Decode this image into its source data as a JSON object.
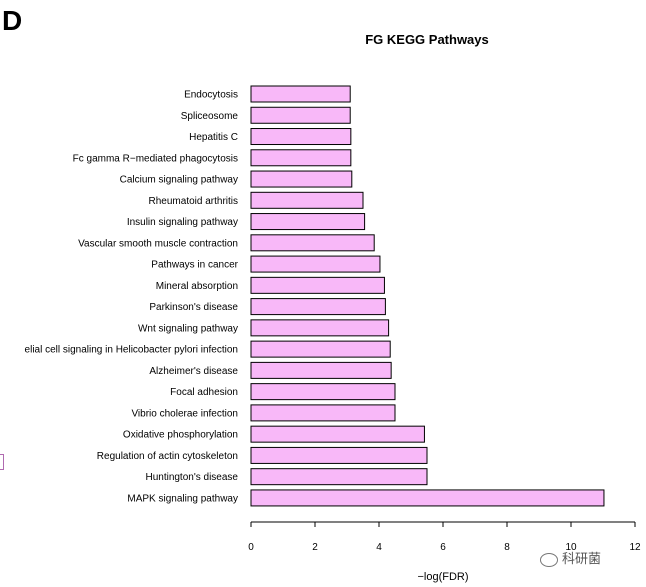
{
  "panel_label": "D",
  "colors": {
    "bar_fill": "#f8b8f8",
    "bar_stroke": "#000000",
    "edge_mark": "#b06ab0"
  },
  "watermark": {
    "text": "科研菌",
    "icon": "wechat-icon"
  },
  "chart_data": {
    "type": "bar",
    "orientation": "horizontal",
    "title": "FG  KEGG Pathways",
    "xlabel": "−log(FDR)",
    "ylabel": "",
    "xlim": [
      0,
      12
    ],
    "xticks": [
      0,
      2,
      4,
      6,
      8,
      10,
      12
    ],
    "grid": false,
    "categories": [
      "Endocytosis",
      "Spliceosome",
      "Hepatitis C",
      "Fc gamma R−mediated phagocytosis",
      "Calcium signaling pathway",
      "Rheumatoid arthritis",
      "Insulin signaling pathway",
      "Vascular smooth muscle contraction",
      "Pathways in cancer",
      "Mineral absorption",
      "Parkinson's disease",
      "Wnt signaling pathway",
      "elial cell signaling in Helicobacter pylori infection",
      "Alzheimer's disease",
      "Focal adhesion",
      "Vibrio cholerae infection",
      "Oxidative phosphorylation",
      "Regulation of actin cytoskeleton",
      "Huntington's disease",
      "MAPK signaling pathway"
    ],
    "values": [
      3.1,
      3.1,
      3.12,
      3.12,
      3.15,
      3.5,
      3.55,
      3.85,
      4.03,
      4.17,
      4.2,
      4.3,
      4.35,
      4.38,
      4.5,
      4.5,
      5.42,
      5.5,
      5.5,
      11.03
    ]
  }
}
